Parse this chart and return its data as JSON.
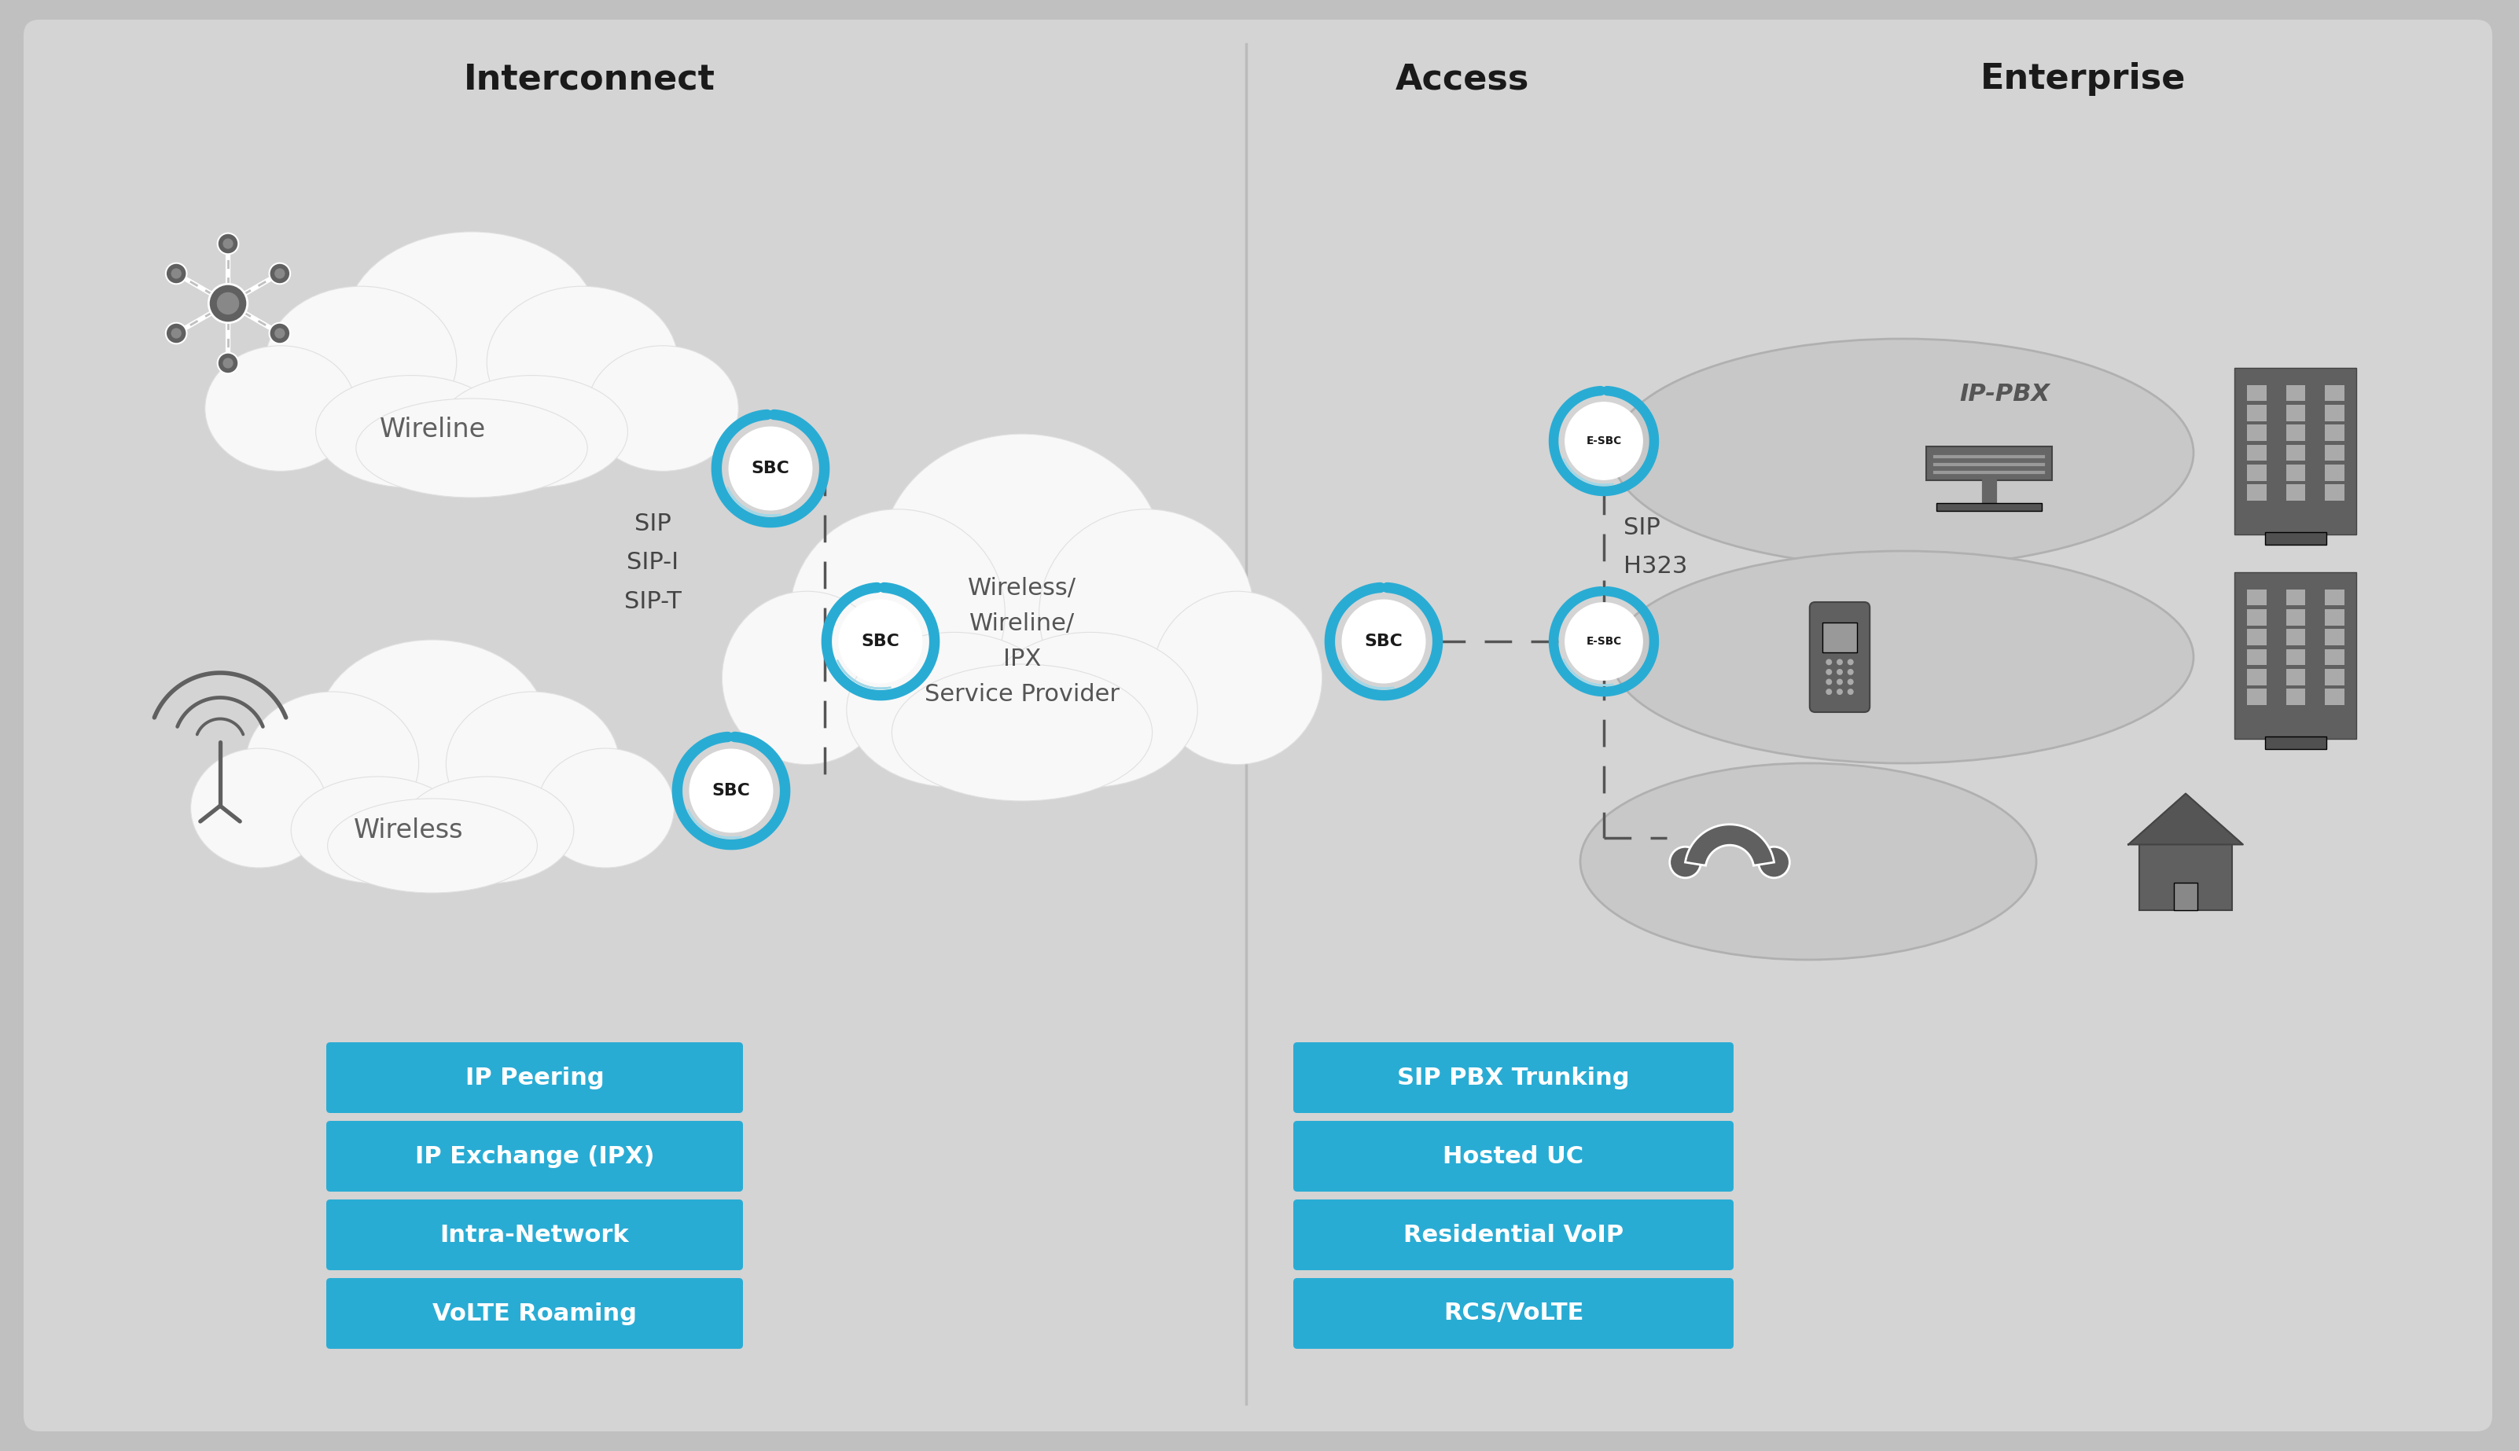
{
  "bg_outer": "#c0c0c0",
  "bg_inner": "#d4d4d4",
  "white": "#ffffff",
  "blue": "#29acd4",
  "icon_gray": "#606060",
  "text_dark": "#1a1a1a",
  "text_gray": "#606060",
  "divider": "#bbbbbb",
  "oval_fill": "#c8c8c8",
  "oval_edge": "#b0b0b0",
  "box_color": "#29acd4",
  "box_text": "#ffffff",
  "dash_color": "#555555",
  "title_interconnect": "Interconnect",
  "title_access": "Access",
  "title_enterprise": "Enterprise",
  "label_wireline": "Wireline",
  "label_wireless": "Wireless",
  "label_sip": "SIP\nSIP-I\nSIP-T",
  "label_center_cloud": "Wireless/\nWireline/\nIPX\nService Provider",
  "label_sip_h323": "SIP\nH323",
  "label_ippbx": "IP-PBX",
  "left_boxes": [
    "IP Peering",
    "IP Exchange (IPX)",
    "Intra-Network",
    "VoLTE Roaming"
  ],
  "right_boxes": [
    "SIP PBX Trunking",
    "Hosted UC",
    "Residential VoIP",
    "RCS/VoLTE"
  ]
}
